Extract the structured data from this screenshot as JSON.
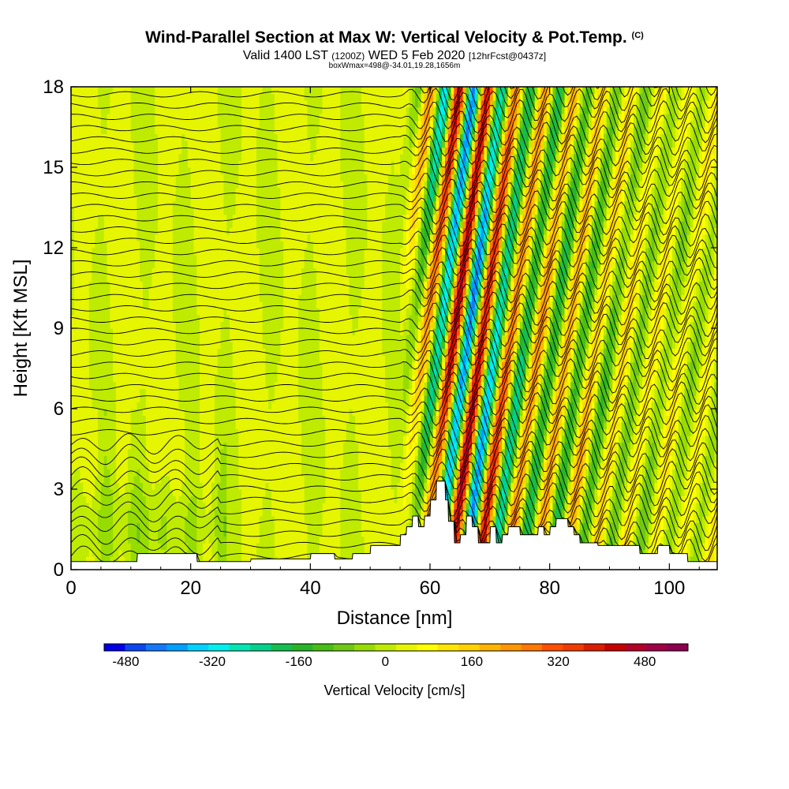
{
  "title": {
    "main": "Wind-Parallel Section at Max W: Vertical Velocity & Pot.Temp.",
    "copyright": "(C)",
    "sub_a": "Valid 1400 LST",
    "sub_b": "(1200Z)",
    "sub_c": "WED 5 Feb 2020",
    "sub_d": "[12hrFcst@0437z]",
    "sub2": "boxWmax=498@-34.01,19.28,1656m"
  },
  "chart_data": {
    "type": "heatmap",
    "subtype": "vertical cross-section with contour overlay",
    "xlabel": "Distance [nm]",
    "ylabel": "Height [Kft MSL]",
    "xlim": [
      0,
      108
    ],
    "ylim": [
      0,
      18
    ],
    "x_ticks": [
      0,
      20,
      40,
      60,
      80,
      100
    ],
    "y_ticks": [
      0,
      3,
      6,
      9,
      12,
      15,
      18
    ],
    "colorbar": {
      "label": "Vertical Velocity [cm/s]",
      "range": [
        -520,
        560
      ],
      "tick_values": [
        -480,
        -320,
        -160,
        0,
        160,
        320,
        480
      ],
      "tick_labels": [
        "-480",
        "-320",
        "-160",
        "0",
        "160",
        "320",
        "480"
      ],
      "colors": [
        "#0000e6",
        "#0a46f0",
        "#1478fa",
        "#00a0ff",
        "#00d2ff",
        "#00f0f0",
        "#00e6b4",
        "#00d28c",
        "#14be50",
        "#28b428",
        "#46be14",
        "#6ec814",
        "#96dc00",
        "#beeb00",
        "#e6f500",
        "#ffff00",
        "#ffe600",
        "#ffd200",
        "#ffb400",
        "#ff9600",
        "#ff7800",
        "#ff5000",
        "#f03c00",
        "#dc1e00",
        "#c80000",
        "#b40028",
        "#a00046",
        "#8c0050"
      ]
    },
    "terrain_profile": {
      "x": [
        0,
        11,
        11.1,
        21,
        21.1,
        30,
        30.1,
        40,
        40.1,
        44,
        44.1,
        47,
        47.1,
        50,
        50.1,
        55,
        55.1,
        56,
        56.1,
        57,
        57.1,
        58,
        58.1,
        59,
        59.1,
        60,
        60.1,
        61,
        61.1,
        62.5,
        62.6,
        63,
        63.1,
        64,
        64.1,
        65,
        65.1,
        66,
        66.1,
        67,
        67.1,
        68,
        68.1,
        70,
        70.1,
        71,
        71.1,
        72,
        72.1,
        73,
        73.1,
        75,
        75.1,
        78,
        78.1,
        79,
        79.1,
        80,
        80.1,
        81,
        81.1,
        83,
        83.1,
        84,
        84.1,
        85,
        85.1,
        88,
        88.1,
        95,
        95.1,
        98,
        98.1,
        100,
        100.1,
        103,
        103.1,
        108
      ],
      "h": [
        0.3,
        0.3,
        0.6,
        0.6,
        0.3,
        0.3,
        0.4,
        0.4,
        0.6,
        0.6,
        0.4,
        0.4,
        0.6,
        0.6,
        0.9,
        0.9,
        1.3,
        1.3,
        1.6,
        1.6,
        2.0,
        2.0,
        1.6,
        1.6,
        2.0,
        2.0,
        2.6,
        2.6,
        3.3,
        3.3,
        2.6,
        2.6,
        1.8,
        1.8,
        1.0,
        1.0,
        1.3,
        1.3,
        2.0,
        2.0,
        1.6,
        1.6,
        1.0,
        1.0,
        1.6,
        1.6,
        1.0,
        1.0,
        1.3,
        1.3,
        1.6,
        1.6,
        1.3,
        1.3,
        1.6,
        1.6,
        1.3,
        1.3,
        1.6,
        1.6,
        1.9,
        1.9,
        1.6,
        1.6,
        1.3,
        1.3,
        1.0,
        1.0,
        0.9,
        0.9,
        0.6,
        0.6,
        0.9,
        0.9,
        0.6,
        0.6,
        0.3,
        0.3
      ]
    },
    "max_vertical_velocity_cm_s": 498
  }
}
